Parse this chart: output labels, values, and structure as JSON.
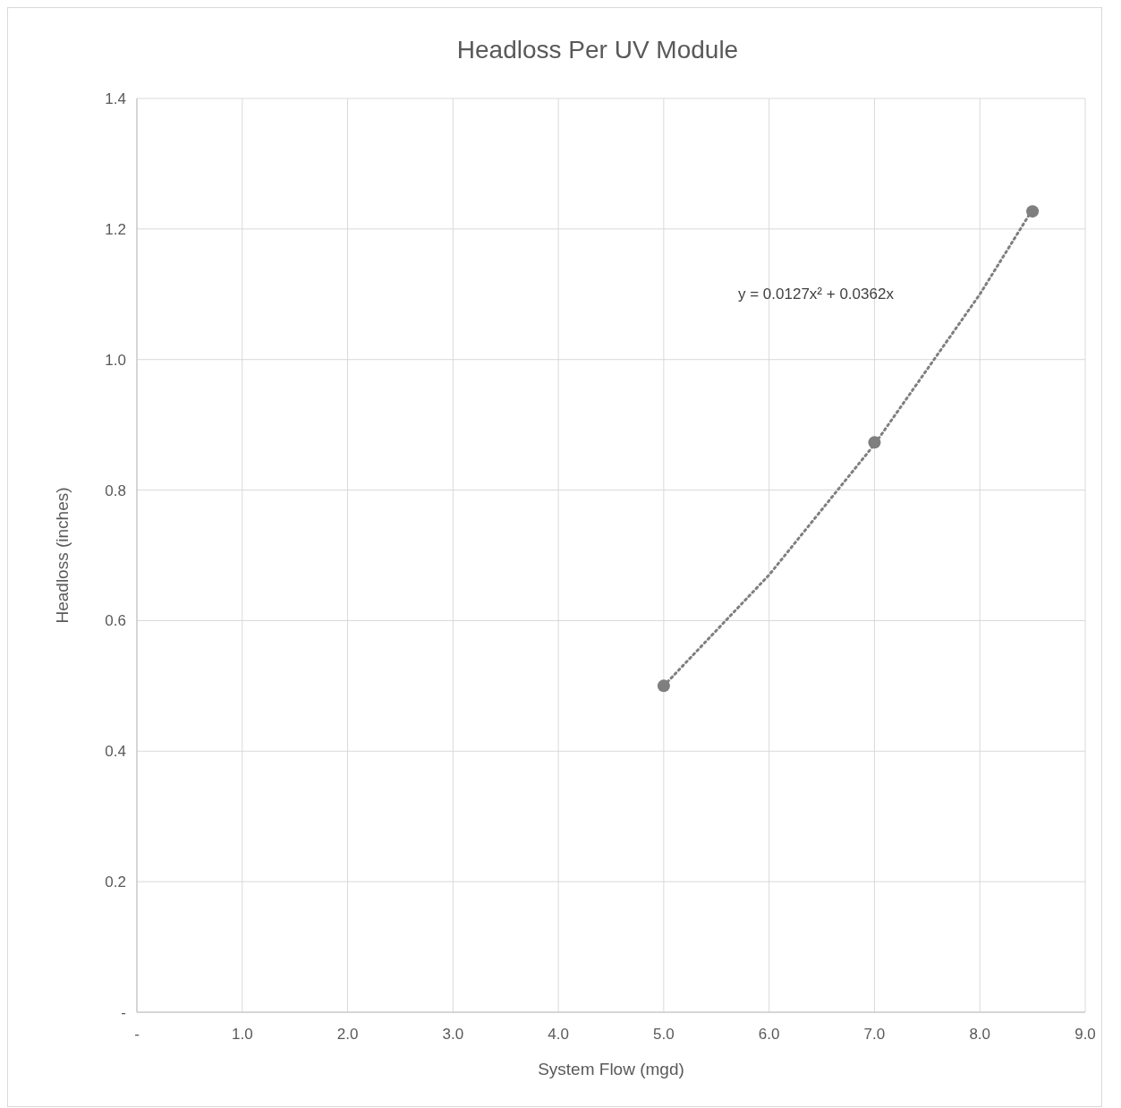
{
  "chart_data": {
    "type": "scatter",
    "title": "Headloss Per UV Module",
    "xlabel": "System Flow (mgd)",
    "ylabel": "Headloss (inches)",
    "xlim": [
      0,
      9
    ],
    "xticks": [
      {
        "value": 0,
        "label": "-"
      },
      {
        "value": 1,
        "label": "1.0"
      },
      {
        "value": 2,
        "label": "2.0"
      },
      {
        "value": 3,
        "label": "3.0"
      },
      {
        "value": 4,
        "label": "4.0"
      },
      {
        "value": 5,
        "label": "5.0"
      },
      {
        "value": 6,
        "label": "6.0"
      },
      {
        "value": 7,
        "label": "7.0"
      },
      {
        "value": 8,
        "label": "8.0"
      },
      {
        "value": 9,
        "label": "9.0"
      }
    ],
    "ylim": [
      0,
      1.4
    ],
    "yticks": [
      {
        "value": 0,
        "label": "-"
      },
      0.2,
      0.4,
      0.6,
      0.8,
      {
        "value": 1,
        "label": "1.0"
      },
      1.2,
      1.4
    ],
    "grid": true,
    "series": [
      {
        "type": "scatter",
        "color": "#7f7f7f",
        "marker": "circle",
        "x": [
          5,
          7,
          8.5
        ],
        "values": [
          0.5,
          0.873,
          1.227
        ]
      },
      {
        "type": "line",
        "color": "#7f7f7f",
        "marker": "none",
        "line_style": "dotted",
        "x": [
          5,
          6,
          7,
          8,
          8.5
        ],
        "values": [
          0.5,
          0.67,
          0.87,
          1.1,
          1.23
        ]
      }
    ],
    "annotations": [
      "y = 0.0127x² + 0.0362x"
    ]
  }
}
